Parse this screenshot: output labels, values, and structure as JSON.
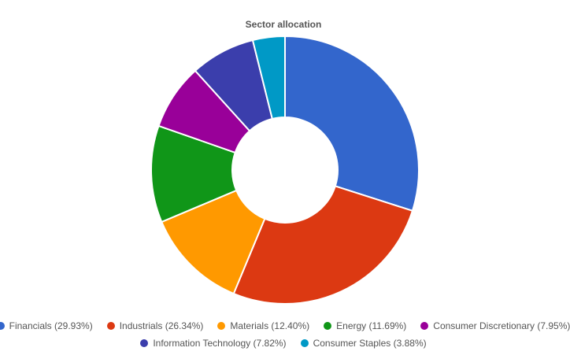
{
  "chart_data": {
    "type": "pie",
    "title": "Sector allocation",
    "donut": true,
    "legend_position": "bottom",
    "series": [
      {
        "name": "Financials",
        "label": "Financials (29.93%)",
        "value": 29.93,
        "color": "#3366cc"
      },
      {
        "name": "Industrials",
        "label": "Industrials (26.34%)",
        "value": 26.34,
        "color": "#dc3912"
      },
      {
        "name": "Materials",
        "label": "Materials (12.40%)",
        "value": 12.4,
        "color": "#ff9900"
      },
      {
        "name": "Energy",
        "label": "Energy (11.69%)",
        "value": 11.69,
        "color": "#109618"
      },
      {
        "name": "Consumer Discretionary",
        "label": "Consumer Discretionary (7.95%)",
        "value": 7.95,
        "color": "#990099"
      },
      {
        "name": "Information Technology",
        "label": "Information Technology (7.82%)",
        "value": 7.82,
        "color": "#3b3eac"
      },
      {
        "name": "Consumer Staples",
        "label": "Consumer Staples (3.88%)",
        "value": 3.88,
        "color": "#0099c6"
      }
    ]
  }
}
